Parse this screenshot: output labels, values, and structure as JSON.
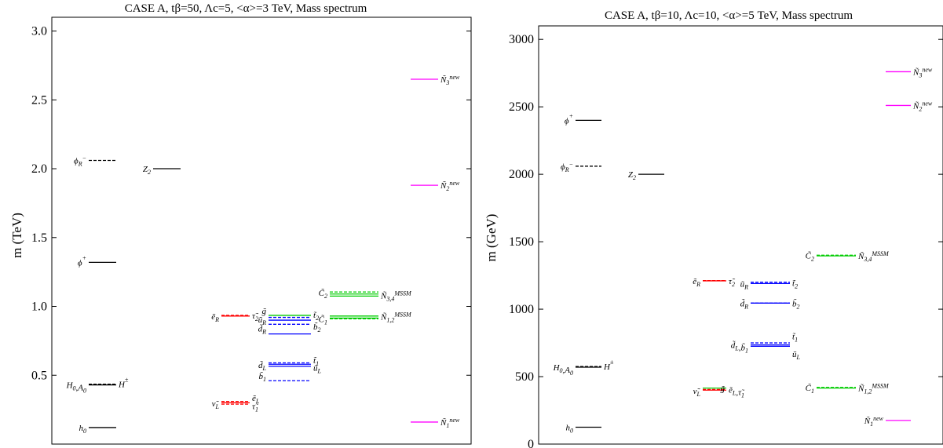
{
  "colors": {
    "higgs": "#000000",
    "slepton": "#ff0000",
    "squark": "#0000ff",
    "gaugino": "#00cc00",
    "singlino": "#ff00ff"
  },
  "chart_data": [
    {
      "type": "scatter",
      "title": "CASE A, tβ=50, Λc=5, <α>=3 TeV, Mass spectrum",
      "ylabel": "m (TeV)",
      "ylim": [
        0.0,
        3.1
      ],
      "yticks": [
        "0.5",
        "1.0",
        "1.5",
        "2.0",
        "2.5",
        "3.0"
      ],
      "ytick_values": [
        0.5,
        1.0,
        1.5,
        2.0,
        2.5,
        3.0
      ],
      "grid": false,
      "series": [
        {
          "name": "ϕR⁻",
          "color": "higgs",
          "column": 1,
          "values": [
            2.06
          ],
          "style": "dashed"
        },
        {
          "name": "ϕ⁺",
          "color": "higgs",
          "column": 1,
          "values": [
            1.32
          ],
          "style": "solid"
        },
        {
          "name": "H0,A0",
          "color": "higgs",
          "column": 1,
          "values": [
            0.43
          ],
          "style": "solid"
        },
        {
          "name": "H±",
          "color": "higgs",
          "column": 1,
          "values": [
            0.435
          ],
          "style": "dashed"
        },
        {
          "name": "h0",
          "color": "higgs",
          "column": 1,
          "values": [
            0.12
          ],
          "style": "solid"
        },
        {
          "name": "Z2",
          "color": "higgs",
          "column": 2,
          "values": [
            2.0
          ],
          "style": "solid"
        },
        {
          "name": "ẽR",
          "color": "slepton",
          "column": 3,
          "values": [
            0.93
          ],
          "style": "solid"
        },
        {
          "name": "τ̃2",
          "color": "slepton",
          "column": 3,
          "values": [
            0.935
          ],
          "style": "dashed"
        },
        {
          "name": "ν̃L",
          "color": "slepton",
          "column": 3,
          "values": [
            0.3
          ],
          "style": "solid"
        },
        {
          "name": "ẽL",
          "color": "slepton",
          "column": 3,
          "values": [
            0.31
          ],
          "style": "dashed"
        },
        {
          "name": "τ̃1",
          "color": "slepton",
          "column": 3,
          "values": [
            0.29
          ],
          "style": "dashed"
        },
        {
          "name": "g̃",
          "color": "gaugino",
          "column": 4,
          "values": [
            0.935
          ],
          "style": "solid"
        },
        {
          "name": "t̃2",
          "color": "squark",
          "column": 4,
          "values": [
            0.92
          ],
          "style": "dashed"
        },
        {
          "name": "ũR",
          "color": "squark",
          "column": 4,
          "values": [
            0.9
          ],
          "style": "solid"
        },
        {
          "name": "b̃2",
          "color": "squark",
          "column": 4,
          "values": [
            0.87
          ],
          "style": "dashed"
        },
        {
          "name": "d̃R",
          "color": "squark",
          "column": 4,
          "values": [
            0.8
          ],
          "style": "solid"
        },
        {
          "name": "t̃1",
          "color": "squark",
          "column": 4,
          "values": [
            0.59
          ],
          "style": "dashed"
        },
        {
          "name": "d̃L",
          "color": "squark",
          "column": 4,
          "values": [
            0.58
          ],
          "style": "solid"
        },
        {
          "name": "ũL",
          "color": "squark",
          "column": 4,
          "values": [
            0.565
          ],
          "style": "solid"
        },
        {
          "name": "b̃1",
          "color": "squark",
          "column": 4,
          "values": [
            0.46
          ],
          "style": "dashed"
        },
        {
          "name": "C̃2",
          "color": "gaugino",
          "column": 5,
          "values": [
            1.105
          ],
          "style": "dashed"
        },
        {
          "name": "Ñ3,4 MSSM",
          "color": "gaugino",
          "column": 5,
          "values": [
            1.09,
            1.075
          ],
          "style": "solid"
        },
        {
          "name": "C̃1",
          "color": "gaugino",
          "column": 5,
          "values": [
            0.91
          ],
          "style": "dashed"
        },
        {
          "name": "Ñ1,2 MSSM",
          "color": "gaugino",
          "column": 5,
          "values": [
            0.93,
            0.915
          ],
          "style": "solid"
        },
        {
          "name": "Ñ3 new",
          "color": "singlino",
          "column": 6,
          "values": [
            2.65
          ],
          "style": "solid"
        },
        {
          "name": "Ñ2 new",
          "color": "singlino",
          "column": 6,
          "values": [
            1.88
          ],
          "style": "solid"
        },
        {
          "name": "Ñ1 new",
          "color": "singlino",
          "column": 6,
          "values": [
            0.16
          ],
          "style": "solid"
        }
      ],
      "labels": [
        {
          "text": "ϕ",
          "sub": "R",
          "sup": "−",
          "value": 2.06,
          "column": 1,
          "side": "left"
        },
        {
          "text": "ϕ",
          "sup": "+",
          "value": 1.32,
          "column": 1,
          "side": "left"
        },
        {
          "text": "H",
          "sub": "0",
          "tail": ",A",
          "tailsub": "0",
          "value": 0.43,
          "column": 1,
          "side": "left"
        },
        {
          "text": "H",
          "sup": "±",
          "value": 0.435,
          "column": 1,
          "side": "right"
        },
        {
          "text": "h",
          "sub": "0",
          "value": 0.12,
          "column": 1,
          "side": "left"
        },
        {
          "text": "Z",
          "sub": "2",
          "value": 2.0,
          "column": 2,
          "side": "left"
        },
        {
          "text": "ẽ",
          "sub": "R",
          "value": 0.93,
          "column": 3,
          "side": "left"
        },
        {
          "text": "τ̃",
          "sub": "2",
          "value": 0.935,
          "column": 3,
          "side": "right"
        },
        {
          "text": "ν̃",
          "sub": "L",
          "value": 0.295,
          "column": 3,
          "side": "left"
        },
        {
          "text": "ẽ",
          "sub": "L",
          "value": 0.335,
          "column": 3,
          "side": "right"
        },
        {
          "text": "τ̃",
          "sub": "1",
          "value": 0.275,
          "column": 3,
          "side": "right"
        },
        {
          "text": "g̃",
          "value": 0.97,
          "column": 4,
          "side": "left"
        },
        {
          "text": "t̃",
          "sub": "2",
          "value": 0.94,
          "column": 4,
          "side": "right"
        },
        {
          "text": "ũ",
          "sub": "R",
          "value": 0.905,
          "column": 4,
          "side": "left"
        },
        {
          "text": "b̃",
          "sub": "2",
          "value": 0.855,
          "column": 4,
          "side": "right"
        },
        {
          "text": "d̃",
          "sub": "R",
          "value": 0.84,
          "column": 4,
          "side": "left"
        },
        {
          "text": "t̃",
          "sub": "1",
          "value": 0.61,
          "column": 4,
          "side": "right"
        },
        {
          "text": "d̃",
          "sub": "L",
          "value": 0.575,
          "column": 4,
          "side": "left"
        },
        {
          "text": "ũ",
          "sub": "L",
          "value": 0.555,
          "column": 4,
          "side": "right"
        },
        {
          "text": "b̃",
          "sub": "1",
          "value": 0.495,
          "column": 4,
          "side": "left"
        },
        {
          "text": "C̃",
          "sub": "2",
          "value": 1.1,
          "column": 5,
          "side": "left"
        },
        {
          "text": "Ñ",
          "sub": "3,4",
          "sup": "MSSM",
          "value": 1.08,
          "column": 5,
          "side": "right"
        },
        {
          "text": "C̃",
          "sub": "1",
          "value": 0.91,
          "column": 5,
          "side": "left"
        },
        {
          "text": "Ñ",
          "sub": "1,2",
          "sup": "MSSM",
          "value": 0.925,
          "column": 5,
          "side": "right"
        },
        {
          "text": "Ñ",
          "sub": "3",
          "sup": "new",
          "value": 2.65,
          "column": 6,
          "side": "right"
        },
        {
          "text": "Ñ",
          "sub": "2",
          "sup": "new",
          "value": 1.88,
          "column": 6,
          "side": "right"
        },
        {
          "text": "Ñ",
          "sub": "1",
          "sup": "new",
          "value": 0.16,
          "column": 6,
          "side": "right"
        }
      ]
    },
    {
      "type": "scatter",
      "title": "CASE A, tβ=10, Λc=10, <α>=5 TeV, Mass spectrum",
      "ylabel": "m (GeV)",
      "ylim": [
        0,
        3100
      ],
      "yticks": [
        "0",
        "500",
        "1000",
        "1500",
        "2000",
        "2500",
        "3000"
      ],
      "ytick_values": [
        0,
        500,
        1000,
        1500,
        2000,
        2500,
        3000
      ],
      "grid": false,
      "series": [
        {
          "name": "ϕ⁺",
          "color": "higgs",
          "column": 1,
          "values": [
            2400
          ],
          "style": "solid"
        },
        {
          "name": "ϕR⁻",
          "color": "higgs",
          "column": 1,
          "values": [
            2060
          ],
          "style": "dashed"
        },
        {
          "name": "H0,A0",
          "color": "higgs",
          "column": 1,
          "values": [
            570
          ],
          "style": "solid"
        },
        {
          "name": "H±",
          "color": "higgs",
          "column": 1,
          "values": [
            575
          ],
          "style": "dashed"
        },
        {
          "name": "h0",
          "color": "higgs",
          "column": 1,
          "values": [
            125
          ],
          "style": "solid"
        },
        {
          "name": "Z2",
          "color": "higgs",
          "column": 2,
          "values": [
            2000
          ],
          "style": "solid"
        },
        {
          "name": "ẽR",
          "color": "slepton",
          "column": 3,
          "values": [
            1210
          ],
          "style": "solid"
        },
        {
          "name": "τ̃2",
          "color": "slepton",
          "column": 3,
          "values": [
            1212
          ],
          "style": "dashed"
        },
        {
          "name": "ν̃L",
          "color": "slepton",
          "column": 3,
          "values": [
            400
          ],
          "style": "solid"
        },
        {
          "name": "ẽL,τ̃1",
          "color": "slepton",
          "column": 3,
          "values": [
            405
          ],
          "style": "dashed"
        },
        {
          "name": "g̃",
          "color": "gaugino",
          "column": 3,
          "values": [
            415
          ],
          "style": "solid"
        },
        {
          "name": "ũR",
          "color": "squark",
          "column": 4,
          "values": [
            1190
          ],
          "style": "solid"
        },
        {
          "name": "t̃2",
          "color": "squark",
          "column": 4,
          "values": [
            1200
          ],
          "style": "dashed"
        },
        {
          "name": "d̃R",
          "color": "squark",
          "column": 4,
          "values": [
            1045
          ],
          "style": "solid"
        },
        {
          "name": "b̃2",
          "color": "squark",
          "column": 4,
          "values": [
            1045
          ],
          "style": "dashed"
        },
        {
          "name": "t̃1",
          "color": "squark",
          "column": 4,
          "values": [
            750
          ],
          "style": "dashed"
        },
        {
          "name": "d̃L,b̃1",
          "color": "squark",
          "column": 4,
          "values": [
            735
          ],
          "style": "solid"
        },
        {
          "name": "ũL",
          "color": "squark",
          "column": 4,
          "values": [
            725
          ],
          "style": "solid"
        },
        {
          "name": "C̃2",
          "color": "gaugino",
          "column": 5,
          "values": [
            1400
          ],
          "style": "dashed"
        },
        {
          "name": "Ñ3,4 MSSM",
          "color": "gaugino",
          "column": 5,
          "values": [
            1395
          ],
          "style": "solid"
        },
        {
          "name": "C̃1",
          "color": "gaugino",
          "column": 5,
          "values": [
            420
          ],
          "style": "dashed"
        },
        {
          "name": "Ñ1,2 MSSM",
          "color": "gaugino",
          "column": 5,
          "values": [
            415
          ],
          "style": "solid"
        },
        {
          "name": "Ñ3 new",
          "color": "singlino",
          "column": 6,
          "values": [
            2760
          ],
          "style": "solid"
        },
        {
          "name": "Ñ2 new",
          "color": "singlino",
          "column": 6,
          "values": [
            2510
          ],
          "style": "solid"
        },
        {
          "name": "Ñ1 new",
          "color": "singlino",
          "column": 6,
          "values": [
            175
          ],
          "style": "solid"
        }
      ],
      "labels": [
        {
          "text": "ϕ",
          "sup": "+",
          "value": 2400,
          "column": 1,
          "side": "left"
        },
        {
          "text": "ϕ",
          "sub": "R",
          "sup": "−",
          "value": 2060,
          "column": 1,
          "side": "left"
        },
        {
          "text": "H",
          "sub": "0",
          "tail": ",A",
          "tailsub": "0",
          "value": 570,
          "column": 1,
          "side": "left"
        },
        {
          "text": "H",
          "sup": "±",
          "value": 575,
          "column": 1,
          "side": "right"
        },
        {
          "text": "h",
          "sub": "0",
          "value": 125,
          "column": 1,
          "side": "left"
        },
        {
          "text": "Z",
          "sub": "2",
          "value": 2000,
          "column": 2,
          "side": "left"
        },
        {
          "text": "ẽ",
          "sub": "R",
          "value": 1210,
          "column": 3,
          "side": "left"
        },
        {
          "text": "τ̃",
          "sub": "2",
          "value": 1210,
          "column": 3,
          "side": "right"
        },
        {
          "text": "ν̃",
          "sub": "L",
          "value": 395,
          "column": 3,
          "side": "left"
        },
        {
          "text": "ẽ",
          "sub": "L",
          "tail": ",τ̃",
          "tailsub": "1",
          "value": 405,
          "column": 3,
          "side": "right"
        },
        {
          "text": "g̃",
          "value": 415,
          "column": 3,
          "side": "inner"
        },
        {
          "text": "ũ",
          "sub": "R",
          "value": 1190,
          "column": 4,
          "side": "left"
        },
        {
          "text": "t̃",
          "sub": "2",
          "value": 1195,
          "column": 4,
          "side": "right"
        },
        {
          "text": "d̃",
          "sub": "R",
          "value": 1045,
          "column": 4,
          "side": "left"
        },
        {
          "text": "b̃",
          "sub": "2",
          "value": 1045,
          "column": 4,
          "side": "right"
        },
        {
          "text": "t̃",
          "sub": "1",
          "value": 800,
          "column": 4,
          "side": "right"
        },
        {
          "text": "d̃",
          "sub": "L",
          "tail": ",b̃",
          "tailsub": "1",
          "value": 735,
          "column": 4,
          "side": "left"
        },
        {
          "text": "ũ",
          "sub": "L",
          "value": 670,
          "column": 4,
          "side": "right"
        },
        {
          "text": "C̃",
          "sub": "2",
          "value": 1400,
          "column": 5,
          "side": "left"
        },
        {
          "text": "Ñ",
          "sub": "3,4",
          "sup": "MSSM",
          "value": 1395,
          "column": 5,
          "side": "right"
        },
        {
          "text": "C̃",
          "sub": "1",
          "value": 420,
          "column": 5,
          "side": "left"
        },
        {
          "text": "Ñ",
          "sub": "1,2",
          "sup": "MSSM",
          "value": 415,
          "column": 5,
          "side": "right"
        },
        {
          "text": "Ñ",
          "sub": "3",
          "sup": "new",
          "value": 2760,
          "column": 6,
          "side": "right"
        },
        {
          "text": "Ñ",
          "sub": "2",
          "sup": "new",
          "value": 2510,
          "column": 6,
          "side": "right"
        },
        {
          "text": "Ñ",
          "sub": "1",
          "sup": "new",
          "value": 175,
          "column": 6,
          "side": "left"
        }
      ]
    }
  ]
}
